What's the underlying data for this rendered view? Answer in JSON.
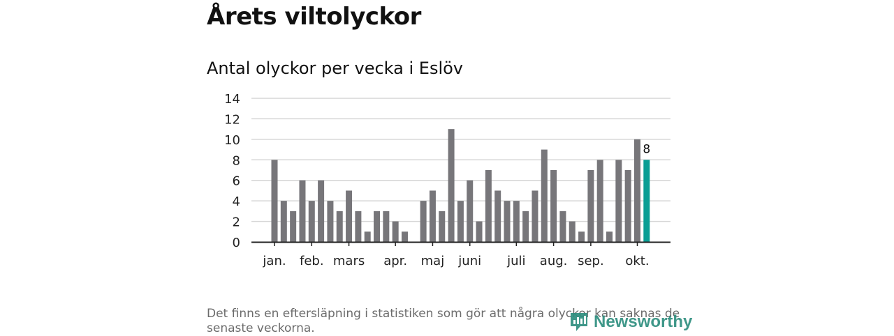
{
  "page": {
    "title": "Årets viltolyckor",
    "subtitle": "Antal olyckor per vecka i Eslöv",
    "note": "Det finns en eftersläpning i statistiken som gör att några olyckor kan saknas de senaste veckorna.",
    "brand": "Newsworthy"
  },
  "colors": {
    "bar": "#77767a",
    "highlight": "#0a9e94",
    "grid": "#d6d6d6",
    "axis": "#222222",
    "brand": "#2f8f7f"
  },
  "chart_data": {
    "type": "bar",
    "title": "Antal olyckor per vecka i Eslöv",
    "xlabel": "",
    "ylabel": "",
    "ylim": [
      0,
      14
    ],
    "yticks": [
      0,
      2,
      4,
      6,
      8,
      10,
      12,
      14
    ],
    "grid": true,
    "weeks": [
      1,
      2,
      3,
      4,
      5,
      6,
      7,
      8,
      9,
      10,
      11,
      12,
      13,
      14,
      15,
      16,
      17,
      18,
      19,
      20,
      21,
      22,
      23,
      24,
      25,
      26,
      27,
      28,
      29,
      30,
      31,
      32,
      33,
      34,
      35,
      36,
      37,
      38,
      39,
      40,
      41
    ],
    "values": [
      8,
      4,
      3,
      6,
      4,
      6,
      4,
      3,
      5,
      3,
      1,
      3,
      3,
      2,
      1,
      0,
      4,
      5,
      3,
      11,
      4,
      6,
      2,
      7,
      5,
      4,
      4,
      3,
      5,
      9,
      7,
      3,
      2,
      1,
      7,
      8,
      1,
      8,
      7,
      10,
      8
    ],
    "highlight_index": 40,
    "last_value_label": "8",
    "month_labels": [
      {
        "label": "jan.",
        "at_week": 1
      },
      {
        "label": "feb.",
        "at_week": 5
      },
      {
        "label": "mars",
        "at_week": 9
      },
      {
        "label": "apr.",
        "at_week": 14
      },
      {
        "label": "maj",
        "at_week": 18
      },
      {
        "label": "juni",
        "at_week": 22
      },
      {
        "label": "juli",
        "at_week": 27
      },
      {
        "label": "aug.",
        "at_week": 31
      },
      {
        "label": "sep.",
        "at_week": 35
      },
      {
        "label": "okt.",
        "at_week": 40
      }
    ]
  }
}
